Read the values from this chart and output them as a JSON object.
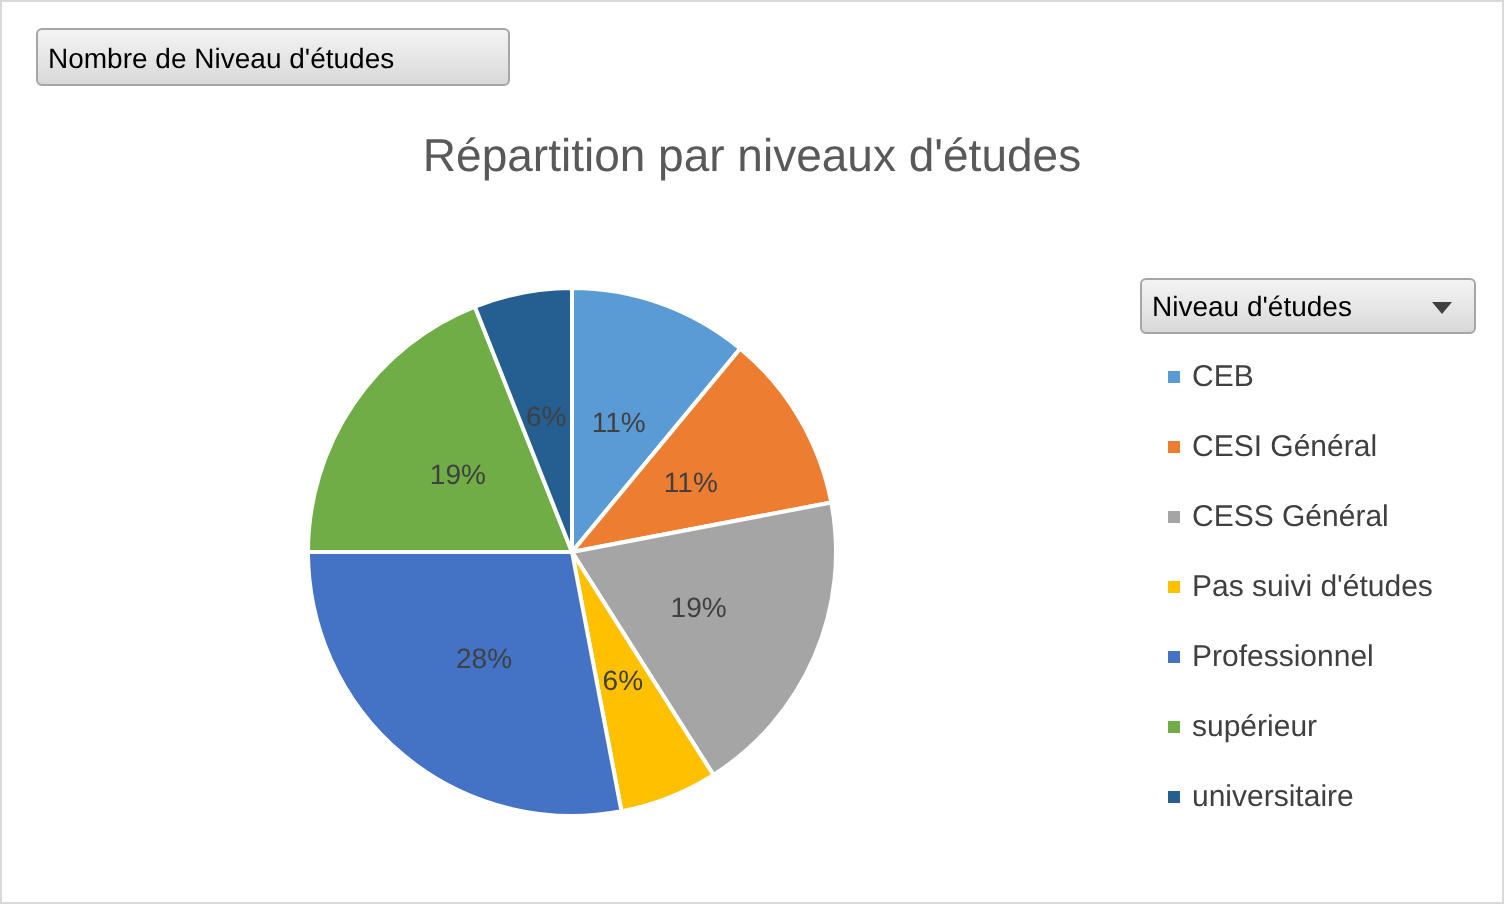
{
  "chart_data": {
    "type": "pie",
    "title": "Répartition par niveaux d'études",
    "legend_title": "Niveau d'études",
    "annotations": [
      "Nombre de Niveau d'études"
    ],
    "categories": [
      "CEB",
      "CESI Général",
      "CESS Général",
      "Pas suivi d'études",
      "Professionnel",
      "supérieur",
      "universitaire"
    ],
    "values": [
      11,
      11,
      19,
      6,
      28,
      19,
      6
    ],
    "colors": [
      "#5b9bd5",
      "#ed7d31",
      "#a5a5a5",
      "#ffc000",
      "#4472c4",
      "#70ad47",
      "#255e91"
    ],
    "value_labels": [
      "11%",
      "11%",
      "19%",
      "6%",
      "28%",
      "19%",
      "6%"
    ],
    "legend": "right"
  }
}
